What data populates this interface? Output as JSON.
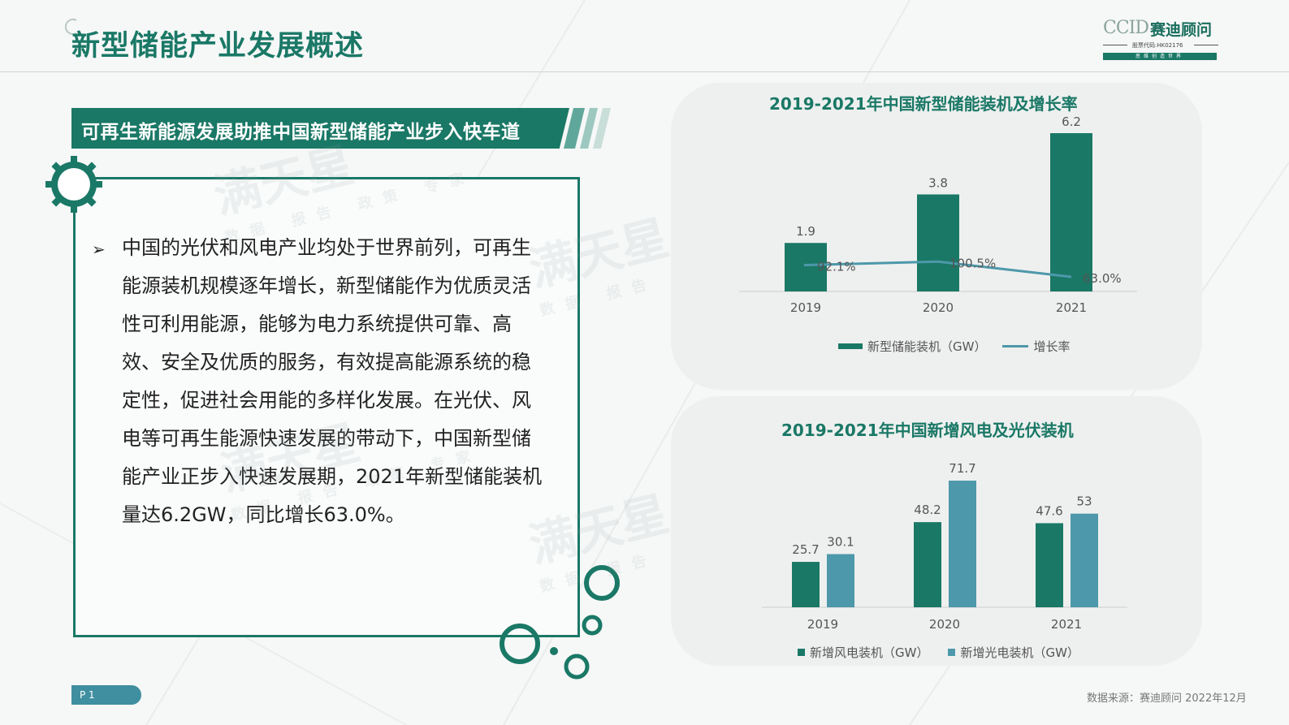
{
  "header": {
    "title": "新型储能产业发展概述",
    "logo": {
      "brand": "CCID",
      "name": "赛迪顾问",
      "stock_code": "股票代码:HK02176",
      "slogan": "思维创造世界"
    }
  },
  "banner": {
    "text": "可再生新能源发展助推中国新型储能产业步入快车道"
  },
  "body": {
    "bullet": "➢",
    "paragraph": "中国的光伏和风电产业均处于世界前列，可再生能源装机规模逐年增长，新型储能作为优质灵活性可利用能源，能够为电力系统提供可靠、高效、安全及优质的服务，有效提高能源系统的稳定性，促进社会用能的多样化发展。在光伏、风电等可再生能源快速发展的带动下，中国新型储能产业正步入快速发展期，2021年新型储能装机量达6.2GW，同比增长63.0%。"
  },
  "watermark": {
    "main": "满天星",
    "sub": "数据 报告 政策 专家"
  },
  "chart_data": [
    {
      "type": "bar",
      "title": "2019-2021年中国新型储能装机及增长率",
      "categories": [
        "2019",
        "2020",
        "2021"
      ],
      "series": [
        {
          "name": "新型储能装机（GW）",
          "kind": "bar",
          "values": [
            1.9,
            3.8,
            6.2
          ],
          "labels": [
            "1.9",
            "3.8",
            "6.2"
          ],
          "color": "#1a7866"
        },
        {
          "name": "增长率",
          "kind": "line",
          "values": [
            92.1,
            100.5,
            63.0
          ],
          "labels": [
            "92.1%",
            "100.5%",
            "63.0%"
          ],
          "color": "#4d98aa"
        }
      ],
      "legend": "bottom"
    },
    {
      "type": "bar",
      "title": "2019-2021年中国新增风电及光伏装机",
      "categories": [
        "2019",
        "2020",
        "2021"
      ],
      "series": [
        {
          "name": "新增风电装机（GW）",
          "values": [
            25.7,
            48.2,
            47.6
          ],
          "labels": [
            "25.7",
            "48.2",
            "47.6"
          ],
          "color": "#1a7866"
        },
        {
          "name": "新增光电装机（GW）",
          "values": [
            30.1,
            71.7,
            53
          ],
          "labels": [
            "30.1",
            "71.7",
            "53"
          ],
          "color": "#4d98aa"
        }
      ],
      "legend": "bottom"
    }
  ],
  "footer": {
    "page": "P 1",
    "source": "数据来源：赛迪顾问 2022年12月"
  }
}
